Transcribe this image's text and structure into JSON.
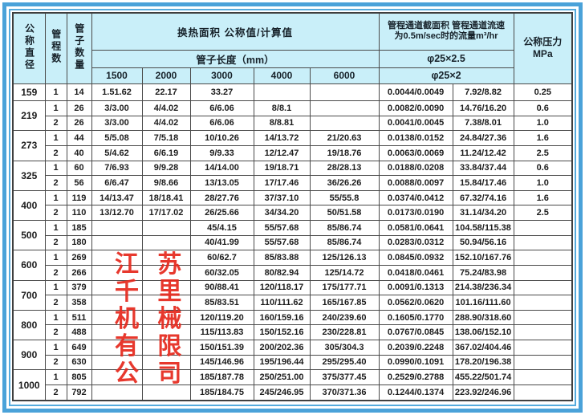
{
  "header": {
    "col_diameter": "公称直径",
    "col_passes": "管程数",
    "col_tubes": "管子数量",
    "area_title": "换热面积 公称值/计算值",
    "tube_length_title": "管子长度（mm）",
    "lengths": [
      "1500",
      "2000",
      "3000",
      "4000",
      "6000"
    ],
    "channel_title_line1": "管程通道截面积 管程通道流速",
    "channel_title_line2": "为0.5m/sec时的流量m³/hr",
    "phi_row1": "φ25×2.5",
    "phi_row2": "φ25×2",
    "pressure_title": "公称压力",
    "pressure_unit": "MPa"
  },
  "watermark": {
    "color": "#e6281c",
    "lines": [
      "江 苏",
      "千 里",
      "机 械",
      "有 限",
      "公 司"
    ]
  },
  "rows": [
    {
      "diameter": "159",
      "span": 1,
      "passes": "1",
      "tubes": "14",
      "v1500": "1.51.62",
      "v2000": "22.17",
      "v3000": "33.27",
      "v4000": "",
      "v6000": "",
      "section": "0.0044/0.0049",
      "flow": "7.92/8.82",
      "pressure": "0.25"
    },
    {
      "diameter": "219",
      "span": 2,
      "passes": "1",
      "tubes": "26",
      "v1500": "3/3.00",
      "v2000": "4/4.02",
      "v3000": "6/6.06",
      "v4000": "8/8.1",
      "v6000": "",
      "section": "0.0082/0.0090",
      "flow": "14.76/16.20",
      "pressure": "0.6"
    },
    {
      "passes": "2",
      "tubes": "26",
      "v1500": "3/3.00",
      "v2000": "4/4.02",
      "v3000": "6/6.06",
      "v4000": "8/8.81",
      "v6000": "",
      "section": "0.0041/0.0045",
      "flow": "7.38/8.01",
      "pressure": "1.0"
    },
    {
      "diameter": "273",
      "span": 2,
      "passes": "1",
      "tubes": "44",
      "v1500": "5/5.08",
      "v2000": "7/5.18",
      "v3000": "10/10.26",
      "v4000": "14/13.72",
      "v6000": "21/20.63",
      "section": "0.0138/0.0152",
      "flow": "24.84/27.36",
      "pressure": "1.6"
    },
    {
      "passes": "2",
      "tubes": "40",
      "v1500": "5/4.62",
      "v2000": "6/6.19",
      "v3000": "9/9.33",
      "v4000": "12/12.47",
      "v6000": "19/18.76",
      "section": "0.0063/0.0069",
      "flow": "11.24/12.42",
      "pressure": "2.5"
    },
    {
      "diameter": "325",
      "span": 2,
      "passes": "1",
      "tubes": "60",
      "v1500": "7/6.93",
      "v2000": "9/9.28",
      "v3000": "14/14.00",
      "v4000": "19/18.71",
      "v6000": "28/28.13",
      "section": "0.0188/0.0208",
      "flow": "33.84/37.44",
      "pressure": "0.6"
    },
    {
      "passes": "2",
      "tubes": "56",
      "v1500": "6/6.47",
      "v2000": "9/8.66",
      "v3000": "13/13.05",
      "v4000": "17/17.46",
      "v6000": "36/26.26",
      "section": "0.0088/0.0097",
      "flow": "15.84/17.46",
      "pressure": "1.0"
    },
    {
      "diameter": "400",
      "span": 2,
      "passes": "1",
      "tubes": "119",
      "v1500": "14/13.47",
      "v2000": "18/18.41",
      "v3000": "28/27.76",
      "v4000": "37/37.10",
      "v6000": "55/55.8",
      "section": "0.0374/0.0412",
      "flow": "67.32/74.16",
      "pressure": "1.6"
    },
    {
      "passes": "2",
      "tubes": "110",
      "v1500": "13/12.70",
      "v2000": "17/17.02",
      "v3000": "26/25.66",
      "v4000": "34/34.20",
      "v6000": "50/51.58",
      "section": "0.0173/0.0190",
      "flow": "31.14/34.20",
      "pressure": "2.5"
    },
    {
      "diameter": "500",
      "span": 2,
      "passes": "1",
      "tubes": "185",
      "v1500": "",
      "v2000": "",
      "v3000": "45/4.15",
      "v4000": "55/57.68",
      "v6000": "85/86.74",
      "section": "0.0581/0.0641",
      "flow": "104.58/115.38",
      "pressure": ""
    },
    {
      "passes": "2",
      "tubes": "180",
      "v1500": "",
      "v2000": "",
      "v3000": "40/41.99",
      "v4000": "55/57.68",
      "v6000": "85/86.74",
      "section": "0.0283/0.0312",
      "flow": "50.94/56.16",
      "pressure": ""
    },
    {
      "diameter": "600",
      "span": 2,
      "passes": "1",
      "tubes": "269",
      "v1500": "",
      "v2000": "",
      "v3000": "60/62.7",
      "v4000": "85/83.88",
      "v6000": "125/126.13",
      "section": "0.0845/0.0932",
      "flow": "152.10/167.76",
      "pressure": ""
    },
    {
      "passes": "2",
      "tubes": "266",
      "v1500": "",
      "v2000": "",
      "v3000": "60/32.05",
      "v4000": "80/82.94",
      "v6000": "125/14.72",
      "section": "0.0418/0.0461",
      "flow": "75.24/83.98",
      "pressure": ""
    },
    {
      "diameter": "700",
      "span": 2,
      "passes": "1",
      "tubes": "379",
      "v1500": "",
      "v2000": "",
      "v3000": "90/88.41",
      "v4000": "120/118.17",
      "v6000": "175/177.71",
      "section": "0.0091/0.1313",
      "flow": "214.38/236.34",
      "pressure": ""
    },
    {
      "passes": "2",
      "tubes": "358",
      "v1500": "",
      "v2000": "",
      "v3000": "85/83.51",
      "v4000": "110/111.62",
      "v6000": "165/167.85",
      "section": "0.0562/0.0620",
      "flow": "101.16/111.60",
      "pressure": ""
    },
    {
      "diameter": "800",
      "span": 2,
      "passes": "1",
      "tubes": "511",
      "v1500": "",
      "v2000": "",
      "v3000": "120/119.20",
      "v4000": "160/159.16",
      "v6000": "240/239.60",
      "section": "0.1605/0.1770",
      "flow": "288.90/318.60",
      "pressure": ""
    },
    {
      "passes": "2",
      "tubes": "488",
      "v1500": "",
      "v2000": "",
      "v3000": "115/113.83",
      "v4000": "150/152.16",
      "v6000": "230/228.81",
      "section": "0.0767/0.0845",
      "flow": "138.06/152.10",
      "pressure": ""
    },
    {
      "diameter": "900",
      "span": 2,
      "passes": "1",
      "tubes": "649",
      "v1500": "",
      "v2000": "",
      "v3000": "150/151.39",
      "v4000": "200/202.36",
      "v6000": "305/304.3",
      "section": "0.2039/0.2248",
      "flow": "367.02/404.46",
      "pressure": ""
    },
    {
      "passes": "2",
      "tubes": "630",
      "v1500": "",
      "v2000": "",
      "v3000": "145/146.96",
      "v4000": "195/196.44",
      "v6000": "295/295.40",
      "section": "0.0990/0.1091",
      "flow": "178.20/196.38",
      "pressure": ""
    },
    {
      "diameter": "1000",
      "span": 2,
      "passes": "1",
      "tubes": "805",
      "v1500": "",
      "v2000": "",
      "v3000": "185/187.78",
      "v4000": "250/251.00",
      "v6000": "375/377.45",
      "section": "0.2529/0.2788",
      "flow": "455.22/501.74",
      "pressure": ""
    },
    {
      "passes": "2",
      "tubes": "792",
      "v1500": "",
      "v2000": "",
      "v3000": "185/184.75",
      "v4000": "245/246.95",
      "v6000": "370/371.36",
      "section": "0.1244/0.1374",
      "flow": "223.92/246.96",
      "pressure": ""
    }
  ]
}
